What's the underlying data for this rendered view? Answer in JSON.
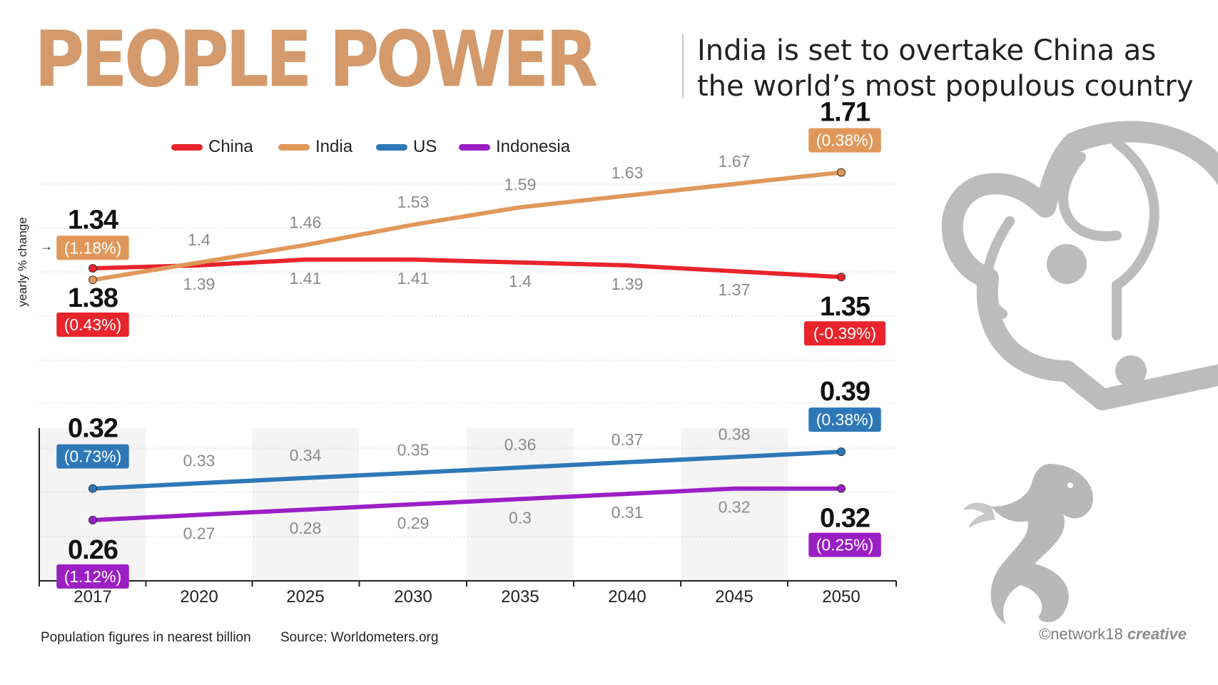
{
  "header": {
    "title": "PEOPLE POWER",
    "subtitle": "India is set to overtake China as the world’s most populous country"
  },
  "notes": {
    "units": "Population figures in nearest billion",
    "source": "Source: Worldometers.org",
    "credit_prefix": "©network18",
    "credit_bold": "creative",
    "yearly_change_label": "yearly % change"
  },
  "icons": [
    "elephant-icon",
    "dragon-icon",
    "arrow-right-icon"
  ],
  "chart_data": {
    "type": "line",
    "x": [
      "2017",
      "2020",
      "2025",
      "2030",
      "2035",
      "2040",
      "2045",
      "2050"
    ],
    "legend": {
      "placement": "top-left"
    },
    "grid": true,
    "panels": [
      {
        "id": "top",
        "ylim": [
          1.1,
          1.8
        ],
        "series": [
          {
            "name": "China",
            "color": "#e8242c",
            "values": [
              1.38,
              1.39,
              1.41,
              1.41,
              1.4,
              1.39,
              1.37,
              1.35
            ],
            "start_change": "(0.43%)",
            "end_change": "(-0.39%)",
            "labels": "below"
          },
          {
            "name": "India",
            "color": "#e0985a",
            "values": [
              1.34,
              1.4,
              1.46,
              1.53,
              1.59,
              1.63,
              1.67,
              1.71
            ],
            "start_change": "(1.18%)",
            "end_change": "(0.38%)",
            "labels": "above"
          }
        ]
      },
      {
        "id": "bottom",
        "ylim": [
          0.15,
          0.5
        ],
        "series": [
          {
            "name": "US",
            "color": "#2e78b8",
            "values": [
              0.32,
              0.33,
              0.34,
              0.35,
              0.36,
              0.37,
              0.38,
              0.39
            ],
            "start_change": "(0.73%)",
            "end_change": "(0.38%)",
            "labels": "above"
          },
          {
            "name": "Indonesia",
            "color": "#9b1fc4",
            "values": [
              0.26,
              0.27,
              0.28,
              0.29,
              0.3,
              0.31,
              0.32,
              0.32
            ],
            "start_change": "(1.12%)",
            "end_change": "(0.25%)",
            "labels": "below"
          }
        ]
      }
    ]
  }
}
